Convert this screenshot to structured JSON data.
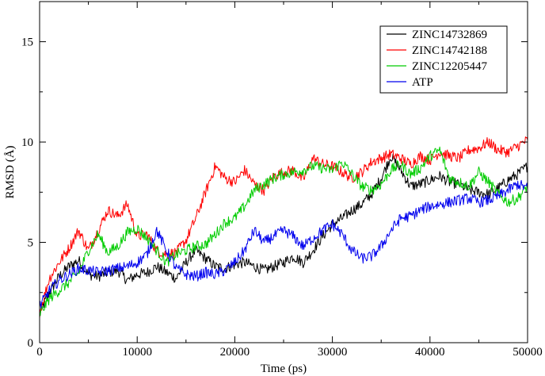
{
  "chart_data": {
    "type": "line",
    "title": "",
    "xlabel": "Time (ps)",
    "ylabel": "RMSD (Å)",
    "xlim": [
      0,
      50000
    ],
    "ylim": [
      0,
      17
    ],
    "xticks": [
      0,
      10000,
      20000,
      30000,
      40000,
      50000
    ],
    "xtick_labels": [
      "0",
      "10000",
      "20000",
      "30000",
      "40000",
      "50000"
    ],
    "yticks": [
      0,
      5,
      10,
      15
    ],
    "ytick_labels": [
      "0",
      "5",
      "10",
      "15"
    ],
    "grid": false,
    "legend_position": "top-right",
    "series": [
      {
        "name": "ZINC14732869",
        "color": "#000000",
        "x": [
          0,
          1000,
          2000,
          3000,
          4000,
          5000,
          6000,
          7000,
          8000,
          9000,
          10000,
          11000,
          12000,
          13000,
          14000,
          15000,
          16000,
          17000,
          18000,
          19000,
          20000,
          21000,
          22000,
          23000,
          24000,
          25000,
          26000,
          27000,
          28000,
          29000,
          30000,
          31000,
          32000,
          33000,
          34000,
          35000,
          36000,
          37000,
          38000,
          39000,
          40000,
          41000,
          42000,
          43000,
          44000,
          45000,
          46000,
          47000,
          48000,
          49000,
          50000
        ],
        "y": [
          1.5,
          2.5,
          3.3,
          3.8,
          4.1,
          3.4,
          3.3,
          3.5,
          3.6,
          3.1,
          3.4,
          3.5,
          3.8,
          3.5,
          3.2,
          4.0,
          4.6,
          4.2,
          3.8,
          3.7,
          3.9,
          4.0,
          3.8,
          3.6,
          3.8,
          4.0,
          4.3,
          4.0,
          4.6,
          5.3,
          5.9,
          6.2,
          6.6,
          6.9,
          7.4,
          8.2,
          9.3,
          8.6,
          7.8,
          7.9,
          8.1,
          8.3,
          8.0,
          7.9,
          7.6,
          7.5,
          7.4,
          7.7,
          8.1,
          8.4,
          8.8
        ]
      },
      {
        "name": "ZINC14742188",
        "color": "#ff0000",
        "x": [
          0,
          1000,
          2000,
          3000,
          4000,
          5000,
          6000,
          7000,
          8000,
          9000,
          10000,
          11000,
          12000,
          13000,
          14000,
          15000,
          16000,
          17000,
          18000,
          19000,
          20000,
          21000,
          22000,
          23000,
          24000,
          25000,
          26000,
          27000,
          28000,
          29000,
          30000,
          31000,
          32000,
          33000,
          34000,
          35000,
          36000,
          37000,
          38000,
          39000,
          40000,
          41000,
          42000,
          43000,
          44000,
          45000,
          46000,
          47000,
          48000,
          49000,
          50000
        ],
        "y": [
          1.5,
          3.2,
          4.0,
          4.7,
          5.6,
          4.6,
          5.6,
          6.6,
          6.3,
          6.9,
          5.3,
          5.4,
          4.6,
          4.4,
          4.5,
          5.1,
          6.2,
          7.5,
          8.8,
          8.2,
          8.0,
          8.6,
          7.9,
          7.6,
          8.3,
          8.5,
          8.6,
          8.1,
          9.2,
          8.9,
          8.8,
          8.5,
          8.2,
          8.5,
          9.0,
          9.2,
          9.4,
          9.2,
          8.9,
          9.3,
          9.1,
          9.5,
          9.3,
          9.2,
          9.6,
          9.7,
          10.0,
          9.6,
          9.5,
          9.8,
          10.1
        ]
      },
      {
        "name": "ZINC12205447",
        "color": "#00cc00",
        "x": [
          0,
          1000,
          2000,
          3000,
          4000,
          5000,
          6000,
          7000,
          8000,
          9000,
          10000,
          11000,
          12000,
          13000,
          14000,
          15000,
          16000,
          17000,
          18000,
          19000,
          20000,
          21000,
          22000,
          23000,
          24000,
          25000,
          26000,
          27000,
          28000,
          29000,
          30000,
          31000,
          32000,
          33000,
          34000,
          35000,
          36000,
          37000,
          38000,
          39000,
          40000,
          41000,
          42000,
          43000,
          44000,
          45000,
          46000,
          47000,
          48000,
          49000,
          50000
        ],
        "y": [
          1.4,
          2.2,
          2.6,
          3.0,
          3.5,
          4.6,
          5.4,
          4.5,
          4.8,
          5.5,
          5.7,
          5.2,
          4.6,
          4.0,
          4.4,
          4.6,
          4.8,
          4.9,
          5.4,
          6.0,
          6.2,
          6.8,
          7.6,
          7.9,
          8.2,
          8.4,
          8.5,
          8.6,
          8.8,
          8.7,
          8.6,
          9.0,
          8.4,
          7.8,
          7.6,
          7.9,
          8.6,
          8.9,
          8.4,
          8.7,
          9.3,
          9.6,
          8.2,
          8.0,
          7.8,
          8.5,
          8.0,
          7.4,
          7.0,
          7.2,
          7.8
        ]
      },
      {
        "name": "ATP",
        "color": "#0000ee",
        "x": [
          0,
          1000,
          2000,
          3000,
          4000,
          5000,
          6000,
          7000,
          8000,
          9000,
          10000,
          11000,
          12000,
          13000,
          14000,
          15000,
          16000,
          17000,
          18000,
          19000,
          20000,
          21000,
          22000,
          23000,
          24000,
          25000,
          26000,
          27000,
          28000,
          29000,
          30000,
          31000,
          32000,
          33000,
          34000,
          35000,
          36000,
          37000,
          38000,
          39000,
          40000,
          41000,
          42000,
          43000,
          44000,
          45000,
          46000,
          47000,
          48000,
          49000,
          50000
        ],
        "y": [
          1.8,
          2.6,
          3.1,
          3.4,
          3.7,
          3.6,
          3.5,
          3.6,
          3.7,
          3.8,
          4.0,
          4.4,
          5.6,
          4.6,
          3.7,
          3.4,
          3.3,
          3.5,
          3.4,
          3.6,
          4.0,
          4.6,
          5.6,
          5.0,
          5.3,
          5.6,
          5.3,
          4.8,
          5.2,
          5.6,
          5.9,
          5.4,
          4.6,
          4.2,
          4.3,
          4.8,
          5.6,
          6.2,
          6.3,
          6.6,
          6.8,
          6.9,
          7.0,
          7.1,
          7.2,
          7.0,
          7.1,
          7.3,
          7.6,
          7.9,
          7.7
        ]
      }
    ]
  }
}
